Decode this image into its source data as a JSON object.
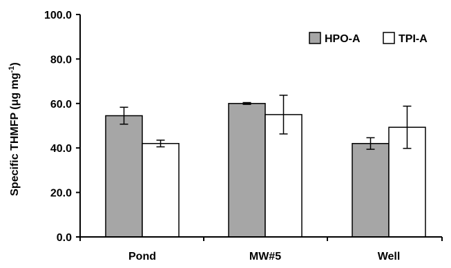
{
  "chart_data": {
    "type": "bar",
    "title": "",
    "xlabel": "",
    "ylabel": "Specific THMFP (μg mg",
    "ylabel_superscript": "-1",
    "ylabel_suffix": ")",
    "ylim": [
      0,
      100
    ],
    "yticks": [
      "0.0",
      "20.0",
      "40.0",
      "60.0",
      "80.0",
      "100.0"
    ],
    "categories": [
      "Pond",
      "MW#5",
      "Well"
    ],
    "series": [
      {
        "name": "HPO-A",
        "color": "#a6a6a6",
        "values": [
          54.5,
          60.0,
          42.0
        ],
        "errors": [
          3.8,
          0.4,
          2.6
        ]
      },
      {
        "name": "TPI-A",
        "color": "#ffffff",
        "values": [
          42.0,
          55.0,
          49.3
        ],
        "errors": [
          1.5,
          8.7,
          9.5
        ]
      }
    ],
    "grid": false,
    "legend_position": "top-right",
    "error_bars": true
  }
}
